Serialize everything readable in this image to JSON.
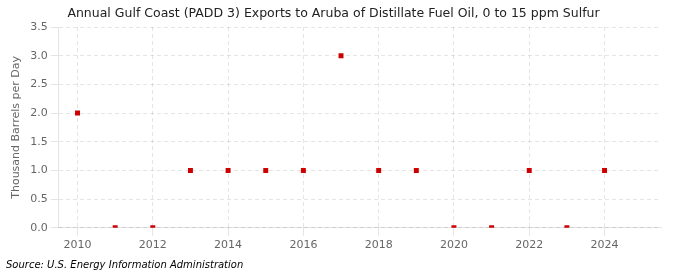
{
  "chart_data": {
    "type": "scatter",
    "title": "Annual Gulf Coast (PADD 3) Exports to Aruba of Distillate Fuel Oil, 0 to 15 ppm Sulfur",
    "ylabel": "Thousand Barrels per Day",
    "annotation": "Source: U.S. Energy Information Administration",
    "x": [
      2010,
      2011,
      2012,
      2013,
      2014,
      2015,
      2016,
      2017,
      2018,
      2019,
      2020,
      2021,
      2022,
      2023,
      2024
    ],
    "values": [
      2.0,
      0.0,
      0.0,
      1.0,
      1.0,
      1.0,
      1.0,
      3.0,
      1.0,
      1.0,
      0.0,
      0.0,
      1.0,
      0.0,
      1.0
    ],
    "color": "#cc0000",
    "marker": "square",
    "xlim": [
      2009.5,
      2025.5
    ],
    "xticks": [
      2010,
      2012,
      2014,
      2016,
      2018,
      2020,
      2022,
      2024
    ],
    "ylim": [
      0.0,
      3.5
    ],
    "yticks": [
      {
        "value": 0,
        "label": "0.0"
      },
      0.5,
      {
        "value": 1,
        "label": "1.0"
      },
      1.5,
      {
        "value": 2,
        "label": "2.0"
      },
      2.5,
      {
        "value": 3,
        "label": "3.0"
      },
      3.5
    ],
    "grid": true
  }
}
